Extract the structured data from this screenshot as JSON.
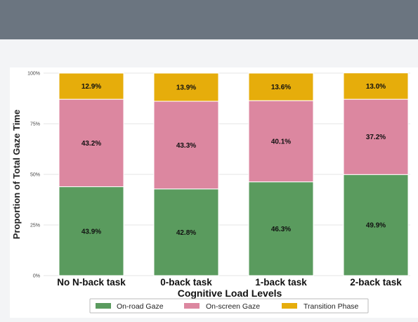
{
  "chart_data": {
    "type": "bar",
    "stacked": true,
    "title": "",
    "xlabel": "Cognitive Load Levels",
    "ylabel": "Proportion of Total Gaze Time",
    "ylim": [
      0,
      100
    ],
    "yticks": [
      "0%",
      "25%",
      "50%",
      "75%",
      "100%"
    ],
    "categories": [
      "No N-back task",
      "0-back task",
      "1-back task",
      "2-back task"
    ],
    "series": [
      {
        "name": "On-road Gaze",
        "color": "#5a9b5e",
        "values": [
          43.9,
          42.8,
          46.3,
          49.9
        ],
        "labels": [
          "43.9%",
          "42.8%",
          "46.3%",
          "49.9%"
        ]
      },
      {
        "name": "On-screen Gaze",
        "color": "#dc87a0",
        "values": [
          43.2,
          43.3,
          40.1,
          37.2
        ],
        "labels": [
          "43.2%",
          "43.3%",
          "40.1%",
          "37.2%"
        ]
      },
      {
        "name": "Transition Phase",
        "color": "#e6ad0b",
        "values": [
          12.9,
          13.9,
          13.6,
          13.0
        ],
        "labels": [
          "12.9%",
          "13.9%",
          "13.6%",
          "13.0%"
        ]
      }
    ],
    "grid": true,
    "legend": "bottom"
  }
}
